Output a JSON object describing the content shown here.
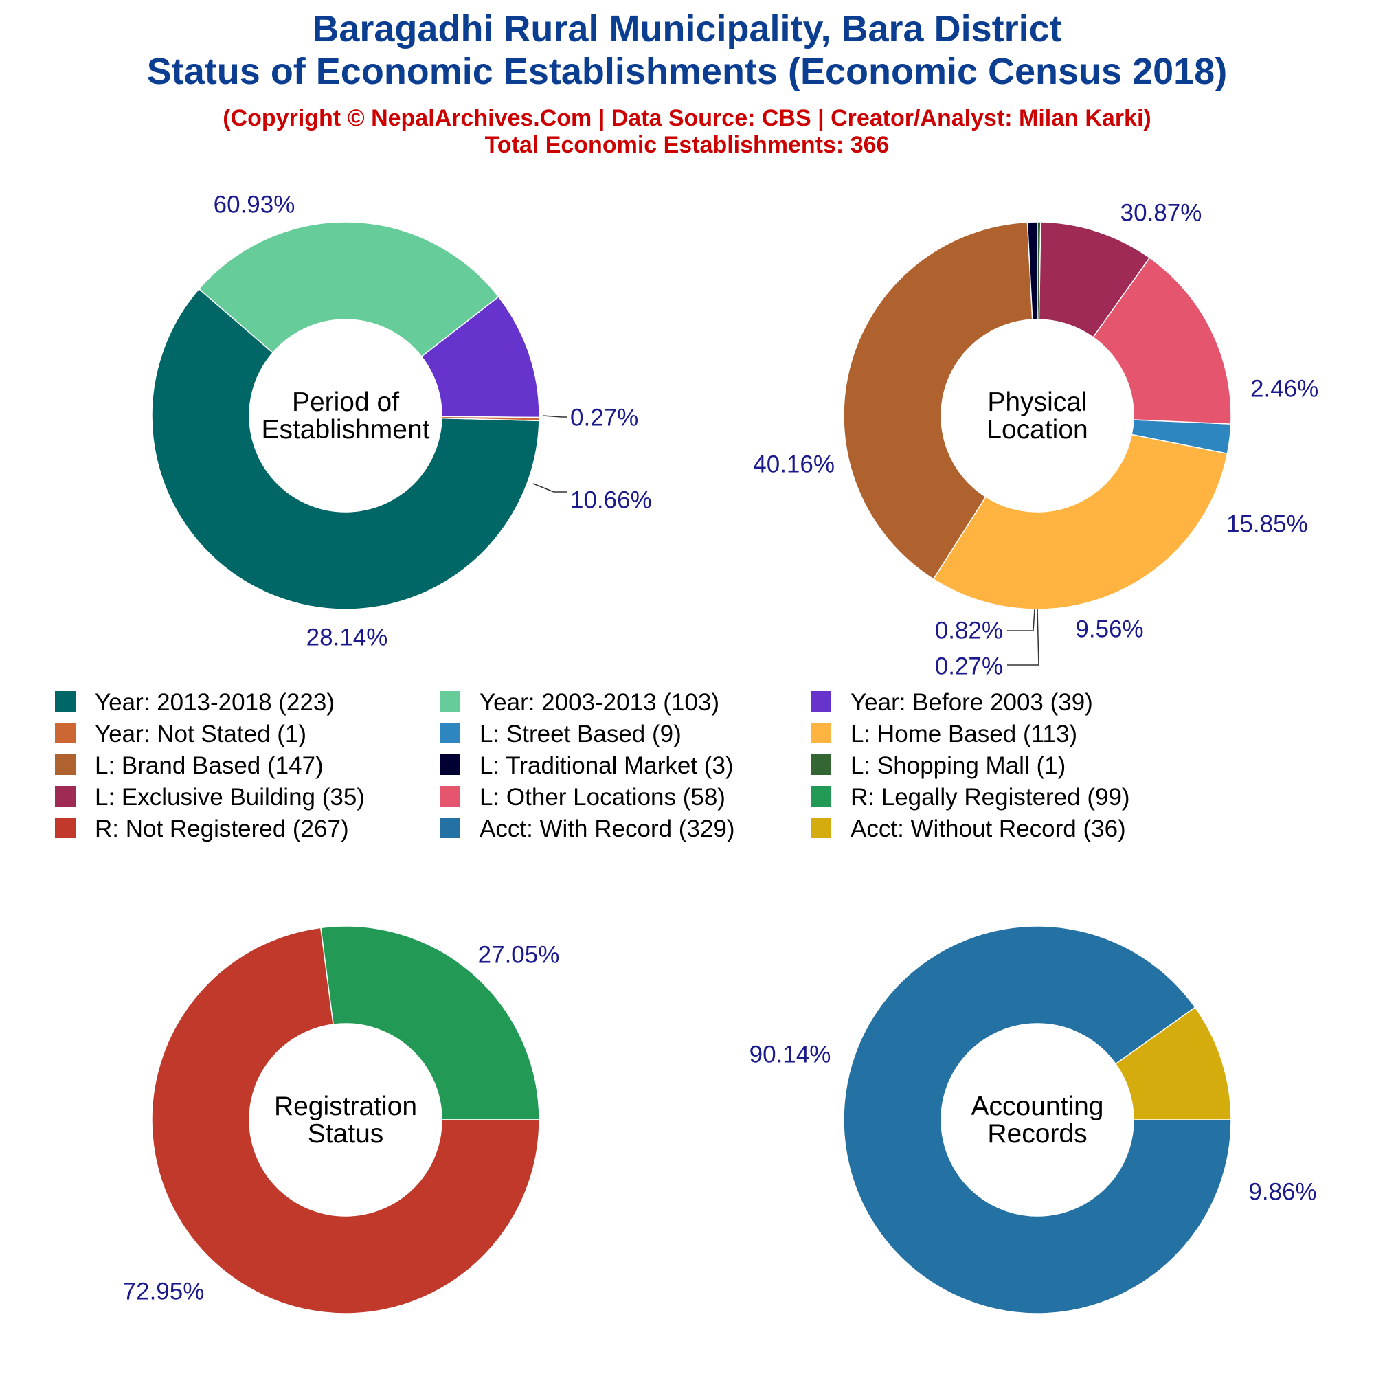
{
  "header": {
    "title_line1": "Baragadhi Rural Municipality, Bara District",
    "title_line2": "Status of Economic Establishments (Economic Census 2018)",
    "subtitle_line1": "(Copyright © NepalArchives.Com | Data Source: CBS | Creator/Analyst: Milan Karki)",
    "subtitle_line2": "Total Economic Establishments: 366"
  },
  "chart_data": [
    {
      "type": "pie",
      "center_label": [
        "Period of",
        "Establishment"
      ],
      "slices": [
        {
          "label": "Year: 2013-2018",
          "value": 223,
          "percent": "60.93%",
          "color": "#006666"
        },
        {
          "label": "Year: 2003-2013",
          "value": 103,
          "percent": "28.14%",
          "color": "#66cc99"
        },
        {
          "label": "Year: Before 2003",
          "value": 39,
          "percent": "10.66%",
          "color": "#6633cc"
        },
        {
          "label": "Year: Not Stated",
          "value": 1,
          "percent": "0.27%",
          "color": "#cc6633"
        }
      ]
    },
    {
      "type": "pie",
      "center_label": [
        "Physical",
        "Location"
      ],
      "slices": [
        {
          "label": "L: Street Based",
          "value": 9,
          "percent": "2.46%",
          "color": "#2e86c1"
        },
        {
          "label": "L: Home Based",
          "value": 113,
          "percent": "30.87%",
          "color": "#ffb340"
        },
        {
          "label": "L: Brand Based",
          "value": 147,
          "percent": "40.16%",
          "color": "#b0622e"
        },
        {
          "label": "L: Traditional Market",
          "value": 3,
          "percent": "0.82%",
          "color": "#000033"
        },
        {
          "label": "L: Shopping Mall",
          "value": 1,
          "percent": "0.27%",
          "color": "#336633"
        },
        {
          "label": "L: Exclusive Building",
          "value": 35,
          "percent": "9.56%",
          "color": "#9e2a55"
        },
        {
          "label": "L: Other Locations",
          "value": 58,
          "percent": "15.85%",
          "color": "#e5566e"
        }
      ]
    },
    {
      "type": "pie",
      "center_label": [
        "Registration",
        "Status"
      ],
      "slices": [
        {
          "label": "R: Legally Registered",
          "value": 99,
          "percent": "27.05%",
          "color": "#229955"
        },
        {
          "label": "R: Not Registered",
          "value": 267,
          "percent": "72.95%",
          "color": "#c0392b"
        }
      ]
    },
    {
      "type": "pie",
      "center_label": [
        "Accounting",
        "Records"
      ],
      "slices": [
        {
          "label": "Acct: With Record",
          "value": 329,
          "percent": "90.14%",
          "color": "#2471a3"
        },
        {
          "label": "Acct: Without Record",
          "value": 36,
          "percent": "9.86%",
          "color": "#d4ac0d"
        }
      ]
    }
  ],
  "legend": [
    {
      "text": "Year: 2013-2018 (223)",
      "color": "#006666"
    },
    {
      "text": "Year: 2003-2013 (103)",
      "color": "#66cc99"
    },
    {
      "text": "Year: Before 2003 (39)",
      "color": "#6633cc"
    },
    {
      "text": "Year: Not Stated (1)",
      "color": "#cc6633"
    },
    {
      "text": "L: Street Based (9)",
      "color": "#2e86c1"
    },
    {
      "text": "L: Home Based (113)",
      "color": "#ffb340"
    },
    {
      "text": "L: Brand Based (147)",
      "color": "#b0622e"
    },
    {
      "text": "L: Traditional Market (3)",
      "color": "#000033"
    },
    {
      "text": "L: Shopping Mall (1)",
      "color": "#336633"
    },
    {
      "text": "L: Exclusive Building (35)",
      "color": "#9e2a55"
    },
    {
      "text": "L: Other Locations (58)",
      "color": "#e5566e"
    },
    {
      "text": "R: Legally Registered (99)",
      "color": "#229955"
    },
    {
      "text": "R: Not Registered (267)",
      "color": "#c0392b"
    },
    {
      "text": "Acct: With Record (329)",
      "color": "#2471a3"
    },
    {
      "text": "Acct: Without Record (36)",
      "color": "#d4ac0d"
    }
  ]
}
